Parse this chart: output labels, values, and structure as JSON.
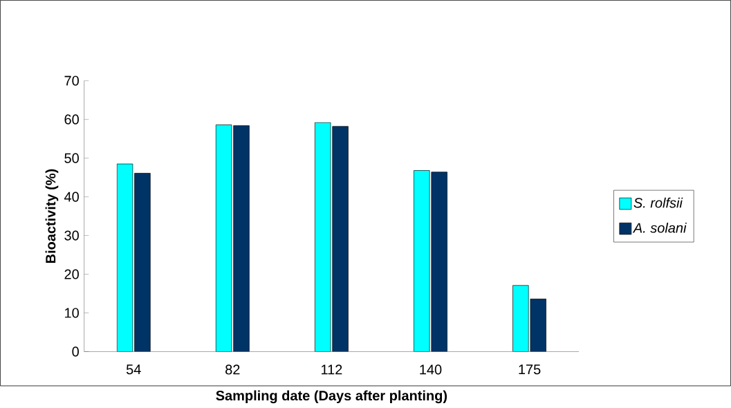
{
  "chart_data": {
    "type": "bar",
    "xlabel": "Sampling date (Days after planting)",
    "ylabel": "Bioactivity (%)",
    "categories": [
      "54",
      "82",
      "112",
      "140",
      "175"
    ],
    "series": [
      {
        "name": "*S. rolfsii*",
        "color": "#00ffff",
        "values": [
          48.5,
          58.6,
          59.2,
          46.8,
          17.1
        ]
      },
      {
        "name": "*A. solani*",
        "color": "#003366",
        "values": [
          46.1,
          58.4,
          58.2,
          46.4,
          13.6
        ]
      }
    ],
    "ylim": [
      0,
      70
    ],
    "yticks": [
      0,
      10,
      20,
      30,
      40,
      50,
      60,
      70
    ],
    "legend": "right",
    "grid": false
  }
}
